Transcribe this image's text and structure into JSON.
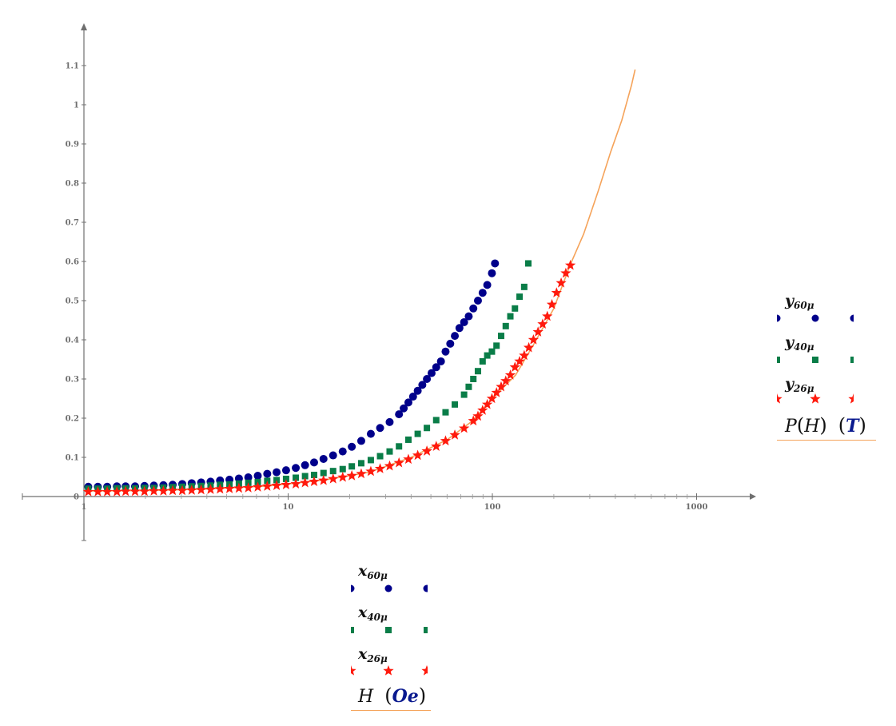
{
  "chart_data": {
    "type": "scatter",
    "title": "",
    "xlabel": "H (Oe)",
    "ylabel": "P(H) (T)",
    "x_scale": "log",
    "xlim": [
      0.5,
      3000
    ],
    "ylim": [
      -0.11,
      1.2
    ],
    "x_ticks": [
      "1",
      "10",
      "100",
      "1000"
    ],
    "y_ticks": [
      "0",
      "0.1",
      "0.2",
      "0.3",
      "0.4",
      "0.5",
      "0.6",
      "0.7",
      "0.8",
      "0.9",
      "1",
      "1.1"
    ],
    "grid": false,
    "legend_position": "right (y) and bottom (x)",
    "series": [
      {
        "name": "60μ",
        "x_label": "x_60μ",
        "y_label": "y_60μ",
        "marker": "circle",
        "color": "#00008b",
        "x": [
          1.05,
          1.17,
          1.3,
          1.45,
          1.6,
          1.78,
          1.98,
          2.2,
          2.45,
          2.72,
          3.03,
          3.37,
          3.75,
          4.17,
          4.64,
          5.16,
          5.74,
          6.38,
          7.1,
          7.9,
          8.78,
          9.77,
          10.9,
          12.1,
          13.4,
          14.9,
          16.6,
          18.5,
          20.5,
          22.8,
          25.4,
          28.2,
          31.4,
          34.9,
          36.8,
          38.8,
          40.9,
          43.1,
          45.4,
          47.8,
          50.4,
          53.1,
          56,
          59,
          62.2,
          65.5,
          69,
          72.7,
          76.6,
          80.7,
          85,
          89.6,
          94.4,
          99.5,
          103
        ],
        "y": [
          0.025,
          0.025,
          0.025,
          0.026,
          0.026,
          0.026,
          0.027,
          0.028,
          0.029,
          0.03,
          0.032,
          0.034,
          0.036,
          0.038,
          0.041,
          0.043,
          0.046,
          0.049,
          0.053,
          0.058,
          0.062,
          0.067,
          0.073,
          0.08,
          0.087,
          0.096,
          0.105,
          0.115,
          0.127,
          0.142,
          0.16,
          0.175,
          0.19,
          0.21,
          0.225,
          0.24,
          0.255,
          0.27,
          0.285,
          0.3,
          0.315,
          0.33,
          0.345,
          0.37,
          0.39,
          0.41,
          0.43,
          0.445,
          0.46,
          0.48,
          0.5,
          0.52,
          0.54,
          0.57,
          0.595
        ]
      },
      {
        "name": "40μ",
        "x_label": "x_40μ",
        "y_label": "y_40μ",
        "marker": "square",
        "color": "#0a7d48",
        "x": [
          1.05,
          1.17,
          1.3,
          1.45,
          1.6,
          1.78,
          1.98,
          2.2,
          2.45,
          2.72,
          3.03,
          3.37,
          3.75,
          4.17,
          4.64,
          5.16,
          5.74,
          6.38,
          7.1,
          7.9,
          8.78,
          9.77,
          10.9,
          12.1,
          13.4,
          14.9,
          16.6,
          18.5,
          20.5,
          22.8,
          25.4,
          28.2,
          31.4,
          34.9,
          38.8,
          43.1,
          47.8,
          53.1,
          59,
          65.5,
          72.7,
          76.6,
          80.7,
          85,
          89.6,
          94.4,
          99.5,
          104.8,
          110.4,
          116.3,
          122.5,
          129,
          135.9,
          143.2,
          150
        ],
        "y": [
          0.02,
          0.02,
          0.02,
          0.021,
          0.021,
          0.021,
          0.022,
          0.022,
          0.023,
          0.024,
          0.025,
          0.026,
          0.027,
          0.028,
          0.03,
          0.031,
          0.033,
          0.035,
          0.037,
          0.04,
          0.042,
          0.045,
          0.048,
          0.052,
          0.055,
          0.06,
          0.065,
          0.07,
          0.077,
          0.085,
          0.093,
          0.103,
          0.115,
          0.128,
          0.145,
          0.16,
          0.175,
          0.195,
          0.215,
          0.235,
          0.26,
          0.28,
          0.3,
          0.32,
          0.345,
          0.36,
          0.37,
          0.385,
          0.41,
          0.435,
          0.46,
          0.48,
          0.51,
          0.535,
          0.595
        ]
      },
      {
        "name": "26μ",
        "x_label": "x_26μ",
        "y_label": "y_26μ",
        "marker": "star",
        "color": "#ff1a0d",
        "x": [
          1.05,
          1.17,
          1.3,
          1.45,
          1.6,
          1.78,
          1.98,
          2.2,
          2.45,
          2.72,
          3.03,
          3.37,
          3.75,
          4.17,
          4.64,
          5.16,
          5.74,
          6.38,
          7.1,
          7.9,
          8.78,
          9.77,
          10.9,
          12.1,
          13.4,
          14.9,
          16.6,
          18.5,
          20.5,
          22.8,
          25.4,
          28.2,
          31.4,
          34.9,
          38.8,
          43.1,
          47.8,
          53.1,
          59,
          65.5,
          72.7,
          80.7,
          85,
          89.6,
          94.4,
          99.5,
          104.8,
          110.4,
          116.3,
          122.5,
          129,
          135.9,
          143.2,
          150.8,
          158.9,
          167.4,
          176.3,
          185.8,
          195.7,
          206.2,
          217.2,
          228.9,
          241
        ],
        "y": [
          0.012,
          0.012,
          0.012,
          0.012,
          0.013,
          0.013,
          0.013,
          0.014,
          0.014,
          0.015,
          0.015,
          0.016,
          0.017,
          0.018,
          0.019,
          0.02,
          0.021,
          0.022,
          0.024,
          0.026,
          0.028,
          0.03,
          0.032,
          0.035,
          0.038,
          0.041,
          0.045,
          0.049,
          0.053,
          0.058,
          0.064,
          0.071,
          0.078,
          0.086,
          0.095,
          0.105,
          0.116,
          0.128,
          0.142,
          0.157,
          0.174,
          0.193,
          0.205,
          0.22,
          0.235,
          0.25,
          0.265,
          0.28,
          0.295,
          0.31,
          0.33,
          0.345,
          0.36,
          0.38,
          0.4,
          0.42,
          0.44,
          0.46,
          0.49,
          0.52,
          0.545,
          0.57,
          0.59
        ]
      },
      {
        "name": "P(H)",
        "marker": "line",
        "color": "#f5a35a",
        "x": [
          1.05,
          2,
          4,
          8,
          15,
          25,
          40,
          60,
          80,
          100,
          130,
          160,
          200,
          240,
          280,
          330,
          380,
          430,
          480,
          500
        ],
        "y": [
          0.014,
          0.015,
          0.019,
          0.027,
          0.042,
          0.062,
          0.1,
          0.145,
          0.193,
          0.25,
          0.31,
          0.39,
          0.48,
          0.59,
          0.67,
          0.78,
          0.88,
          0.96,
          1.05,
          1.09
        ]
      }
    ]
  },
  "legend_y": {
    "entries": [
      {
        "var": "y",
        "sub": "60μ"
      },
      {
        "var": "y",
        "sub": "40μ"
      },
      {
        "var": "y",
        "sub": "26μ"
      }
    ],
    "title_func": "P",
    "title_arg": "H",
    "title_unit": "T"
  },
  "legend_x": {
    "entries": [
      {
        "var": "x",
        "sub": "60μ"
      },
      {
        "var": "x",
        "sub": "40μ"
      },
      {
        "var": "x",
        "sub": "26μ"
      }
    ],
    "title_var": "H",
    "title_unit": "Oe"
  }
}
